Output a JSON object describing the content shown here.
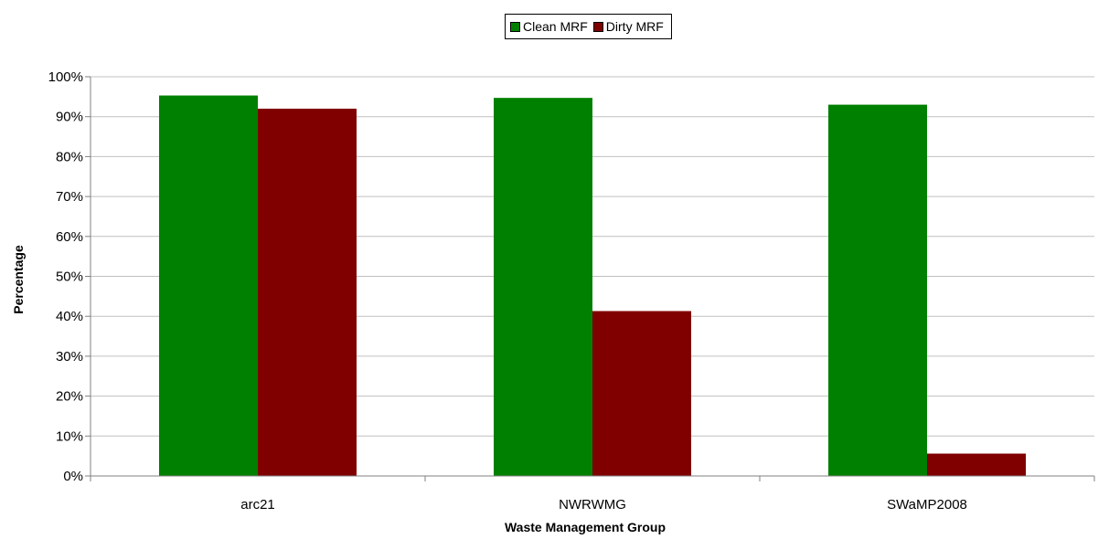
{
  "chart_data": {
    "type": "bar",
    "title": "",
    "xlabel": "Waste Management Group",
    "ylabel": "Percentage",
    "categories": [
      "arc21",
      "NWRWMG",
      "SWaMP2008"
    ],
    "series": [
      {
        "name": "Clean MRF",
        "color": "#008000",
        "values": [
          95.3,
          94.7,
          93.0
        ]
      },
      {
        "name": "Dirty MRF",
        "color": "#800000",
        "values": [
          92.0,
          41.3,
          5.6
        ]
      }
    ],
    "ylim": [
      0,
      100
    ],
    "yticks": [
      "0%",
      "10%",
      "20%",
      "30%",
      "40%",
      "50%",
      "60%",
      "70%",
      "80%",
      "90%",
      "100%"
    ],
    "grid": true,
    "legend_position": "top"
  }
}
